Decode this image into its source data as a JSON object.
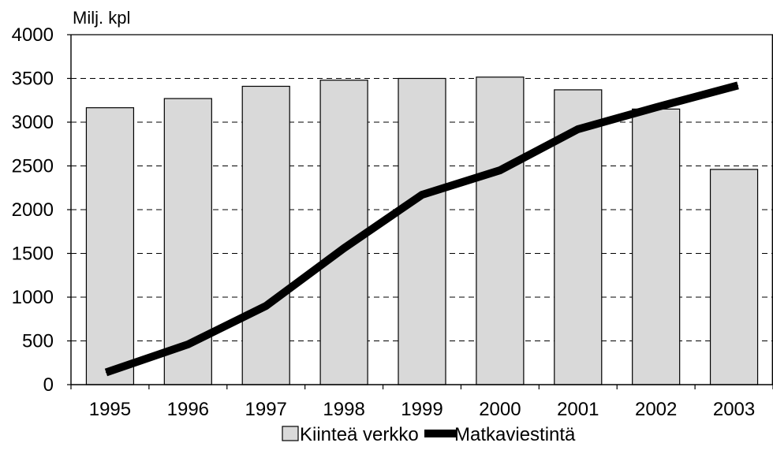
{
  "chart_data": {
    "type": "bar",
    "ylabel": "Milj. kpl",
    "categories": [
      "1995",
      "1996",
      "1997",
      "1998",
      "1999",
      "2000",
      "2001",
      "2002",
      "2003"
    ],
    "ylim": [
      0,
      4000
    ],
    "yticks": [
      "0",
      "500",
      "1000",
      "1500",
      "2000",
      "2500",
      "3000",
      "3500",
      "4000"
    ],
    "grid": "horizontal dashed",
    "legend_position": "bottom",
    "series": [
      {
        "name": "Kiinteä verkko",
        "type": "bar",
        "color": "#d9d9d9",
        "values": [
          3165,
          3270,
          3410,
          3480,
          3500,
          3515,
          3370,
          3150,
          2460
        ]
      },
      {
        "name": "Matkaviestintä",
        "type": "line",
        "color": "#000000",
        "values": [
          140,
          460,
          900,
          1560,
          2170,
          2450,
          2920,
          3170,
          3420
        ]
      }
    ]
  }
}
